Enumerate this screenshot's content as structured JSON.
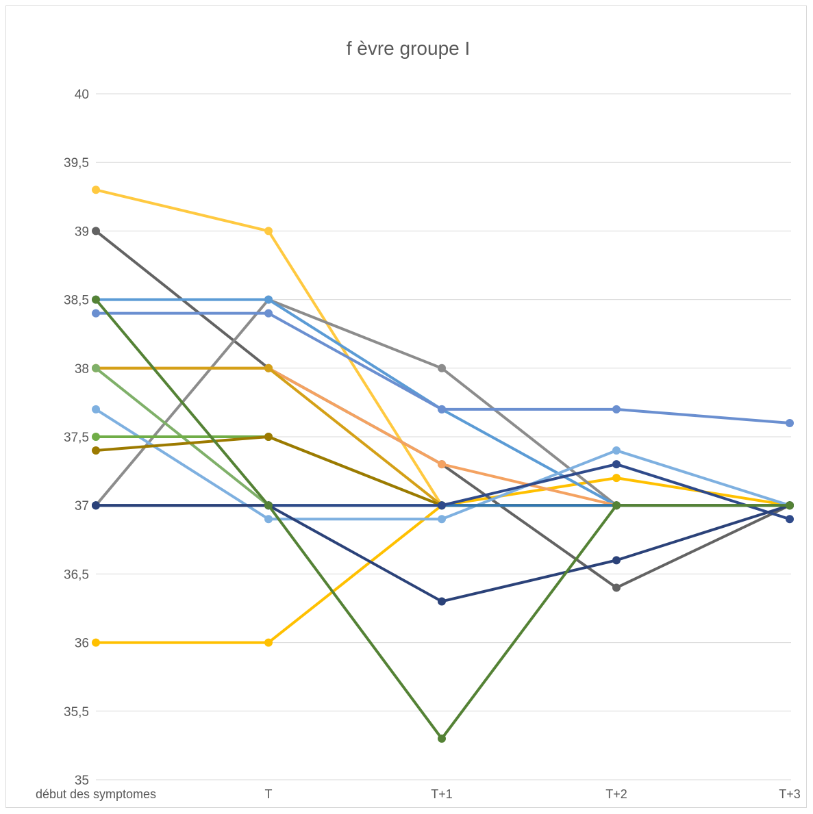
{
  "chart_data": {
    "type": "line",
    "title": "f èvre groupe I",
    "xlabel": "",
    "ylabel": "",
    "categories": [
      "début des symptomes",
      "T",
      "T+1",
      "T+2",
      "T+3"
    ],
    "ylim": [
      35,
      40
    ],
    "yticks": [
      "35",
      "35,5",
      "36",
      "36,5",
      "37",
      "37,5",
      "38",
      "38,5",
      "39",
      "39,5",
      "40"
    ],
    "ytick_values": [
      35,
      35.5,
      36,
      36.5,
      37,
      37.5,
      38,
      38.5,
      39,
      39.5,
      40
    ],
    "grid": true,
    "legend": "none",
    "series": [
      {
        "color": "#FFC000",
        "values": [
          36,
          36,
          37,
          37.2,
          37
        ]
      },
      {
        "color": "#FFC940",
        "values": [
          39.3,
          39,
          37,
          37,
          37
        ]
      },
      {
        "color": "#636363",
        "values": [
          39,
          38,
          37.3,
          36.4,
          37
        ]
      },
      {
        "color": "#8C8C8C",
        "values": [
          37,
          38.5,
          38,
          37,
          37
        ]
      },
      {
        "color": "#5B9BD5",
        "values": [
          38.5,
          38.5,
          37.7,
          37,
          37
        ]
      },
      {
        "color": "#6A8FD0",
        "values": [
          38.4,
          38.4,
          37.7,
          37.7,
          37.6
        ]
      },
      {
        "color": "#F4A261",
        "values": [
          38,
          38,
          37.3,
          37,
          37
        ]
      },
      {
        "color": "#D4A017",
        "values": [
          38,
          38,
          37,
          37,
          37
        ]
      },
      {
        "color": "#7FB069",
        "values": [
          38,
          37,
          37,
          37,
          37
        ]
      },
      {
        "color": "#7EB0E0",
        "values": [
          37.7,
          36.9,
          36.9,
          37.4,
          37
        ]
      },
      {
        "color": "#70AD47",
        "values": [
          37.5,
          37.5,
          37,
          37,
          37
        ]
      },
      {
        "color": "#9C7A00",
        "values": [
          37.4,
          37.5,
          37,
          37,
          37
        ]
      },
      {
        "color": "#2E75B6",
        "values": [
          37,
          37,
          37,
          37,
          37
        ]
      },
      {
        "color": "#2F4A8A",
        "values": [
          37,
          37,
          37,
          37.3,
          36.9
        ]
      },
      {
        "color": "#2B4279",
        "values": [
          37,
          37,
          36.3,
          36.6,
          37
        ]
      },
      {
        "color": "#548235",
        "values": [
          38.5,
          37,
          35.3,
          37,
          37
        ]
      }
    ]
  }
}
